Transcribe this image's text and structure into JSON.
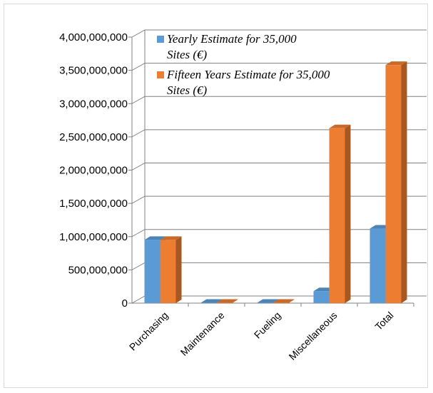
{
  "chart_data": {
    "type": "bar",
    "title": "",
    "xlabel": "",
    "ylabel": "",
    "categories": [
      "Purchasing",
      "Maintenance",
      "Fueling",
      "Miscellaneous",
      "Total"
    ],
    "series": [
      {
        "name": "Yearly Estimate for 35,000 Sites (€)",
        "color": "#5b9bd5",
        "values": [
          950000000,
          0,
          0,
          180000000,
          1120000000
        ]
      },
      {
        "name": "Fifteen Years Estimate for 35,000 Sites (€)",
        "color": "#ed7d31",
        "values": [
          950000000,
          0,
          0,
          2630000000,
          3580000000
        ]
      }
    ],
    "ylim": [
      0,
      4000000000
    ],
    "yticks": [
      "0",
      "500,000,000",
      "1,000,000,000",
      "1,500,000,000",
      "2,000,000,000",
      "2,500,000,000",
      "3,000,000,000",
      "3,500,000,000",
      "4,000,000,000"
    ],
    "grid": true,
    "legend_position": "top-right",
    "style": "3d-column"
  }
}
